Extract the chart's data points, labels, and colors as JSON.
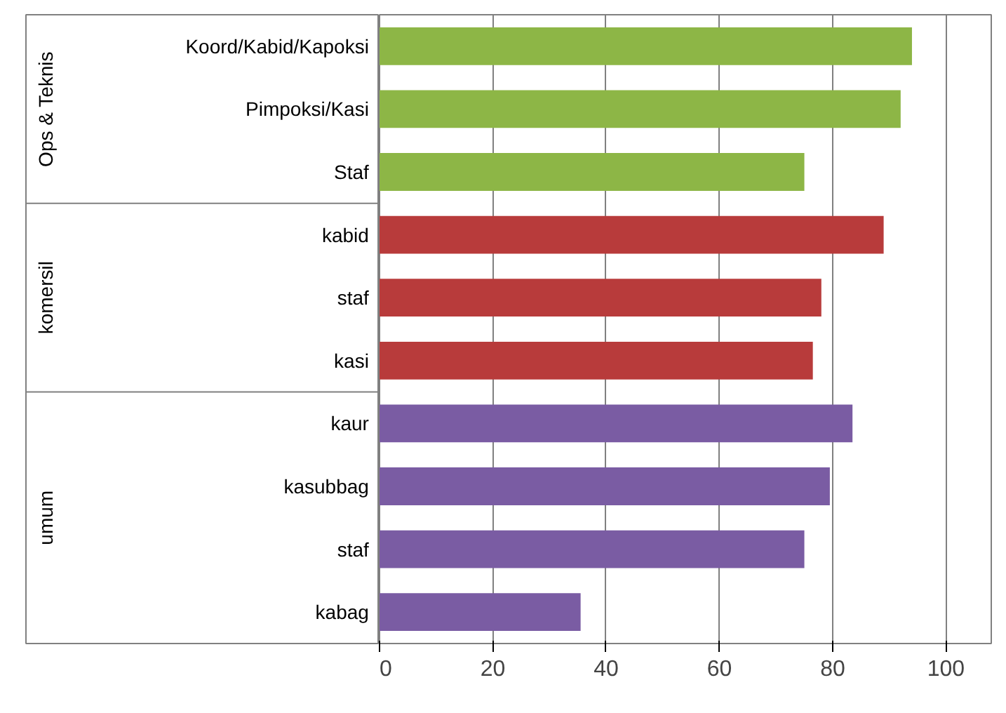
{
  "chart_data": {
    "type": "bar",
    "orientation": "horizontal",
    "categories": [
      "Koord/Kabid/Kapoksi",
      "Pimpoksi/Kasi",
      "Staf",
      "kabid",
      "staf",
      "kasi",
      "kaur",
      "kasubbag",
      "staf",
      "kabag"
    ],
    "values": [
      94,
      92,
      75,
      89,
      78,
      76.5,
      83.5,
      79.5,
      75,
      35.5
    ],
    "colors": [
      "#8db646",
      "#8db646",
      "#8db646",
      "#b83b3b",
      "#b83b3b",
      "#b83b3b",
      "#7a5ca3",
      "#7a5ca3",
      "#7a5ca3",
      "#7a5ca3"
    ],
    "annotations": [
      "Ops & Teknis",
      "komersil",
      "umum"
    ],
    "xlim": [
      0,
      108
    ],
    "xticks": [
      0,
      20,
      40,
      60,
      80,
      100
    ],
    "grid": "x"
  }
}
